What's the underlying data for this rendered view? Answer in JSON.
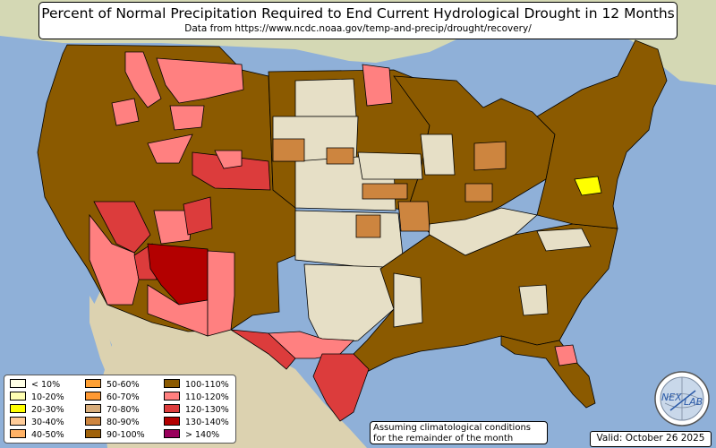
{
  "title": "Percent of Normal Precipitation Required to End Current Hydrological Drought in 12 Months",
  "subtitle": "Data from https://www.ncdc.noaa.gov/temp-and-precip/drought/recovery/",
  "note_line1": "Assuming climatological conditions",
  "note_line2": "for the remainder of the month",
  "valid": "Valid: October 26 2025",
  "logo_text_left": "NEX",
  "logo_text_right": "LAB",
  "colors": {
    "ocean": "#8fb0d8",
    "land": "#e6dfc6",
    "canada": "#d4d8b4",
    "mexico": "#dcd2b0"
  },
  "legend": [
    {
      "label": "< 10%",
      "color": "#ffffe6"
    },
    {
      "label": "10-20%",
      "color": "#ffffb2"
    },
    {
      "label": "20-30%",
      "color": "#ffff00"
    },
    {
      "label": "30-40%",
      "color": "#ffcc99"
    },
    {
      "label": "40-50%",
      "color": "#ffb266"
    },
    {
      "label": "50-60%",
      "color": "#ffa033"
    },
    {
      "label": "60-70%",
      "color": "#ff9933"
    },
    {
      "label": "70-80%",
      "color": "#d8ad7b"
    },
    {
      "label": "80-90%",
      "color": "#cd853f"
    },
    {
      "label": "90-100%",
      "color": "#a0620a"
    },
    {
      "label": "100-110%",
      "color": "#8b5a00"
    },
    {
      "label": "110-120%",
      "color": "#ff8080"
    },
    {
      "label": "120-130%",
      "color": "#dc3c3c"
    },
    {
      "label": "130-140%",
      "color": "#b30000"
    },
    {
      "label": "> 140%",
      "color": "#99005c"
    }
  ],
  "regions": [
    {
      "name": "west",
      "color": "#8b5a00"
    },
    {
      "name": "northern-idaho-montana",
      "color": "#ff8080"
    },
    {
      "name": "southern-california",
      "color": "#ff8080"
    },
    {
      "name": "nevada",
      "color": "#dc3c3c"
    },
    {
      "name": "arizona-core",
      "color": "#b30000"
    },
    {
      "name": "southern-arizona",
      "color": "#ff8080"
    },
    {
      "name": "utah",
      "color": "#ff8080"
    },
    {
      "name": "wyoming-south",
      "color": "#dc3c3c"
    },
    {
      "name": "eastern-utah",
      "color": "#dc3c3c"
    },
    {
      "name": "new-mexico",
      "color": "#ff8080"
    },
    {
      "name": "west-texas",
      "color": "#dc3c3c"
    },
    {
      "name": "south-texas",
      "color": "#ff8080"
    },
    {
      "name": "texas-coast",
      "color": "#dc3c3c"
    },
    {
      "name": "northern-plains",
      "color": "#8b5a00"
    },
    {
      "name": "dakotas-central",
      "color": "#e6dfc6"
    },
    {
      "name": "nebraska-kansas",
      "color": "#e6dfc6"
    },
    {
      "name": "oklahoma-texas-plains",
      "color": "#e6dfc6"
    },
    {
      "name": "south-dakota-patch",
      "color": "#cd853f"
    },
    {
      "name": "kansas-patch",
      "color": "#cd853f"
    },
    {
      "name": "minnesota-red",
      "color": "#ff8080"
    },
    {
      "name": "midwest",
      "color": "#8b5a00"
    },
    {
      "name": "iowa-illinois-plain",
      "color": "#e6dfc6"
    },
    {
      "name": "missouri-patch",
      "color": "#cd853f"
    },
    {
      "name": "south",
      "color": "#8b5a00"
    },
    {
      "name": "ohio-valley-plain",
      "color": "#e6dfc6"
    },
    {
      "name": "gulf-coast-plain",
      "color": "#e6dfc6"
    },
    {
      "name": "northeast",
      "color": "#8b5a00"
    },
    {
      "name": "maryland",
      "color": "#ffff00"
    },
    {
      "name": "florida",
      "color": "#8b5a00"
    },
    {
      "name": "florida-red",
      "color": "#ff8080"
    },
    {
      "name": "georgia-plain",
      "color": "#e6dfc6"
    },
    {
      "name": "lower-michigan-patch",
      "color": "#cd853f"
    }
  ]
}
